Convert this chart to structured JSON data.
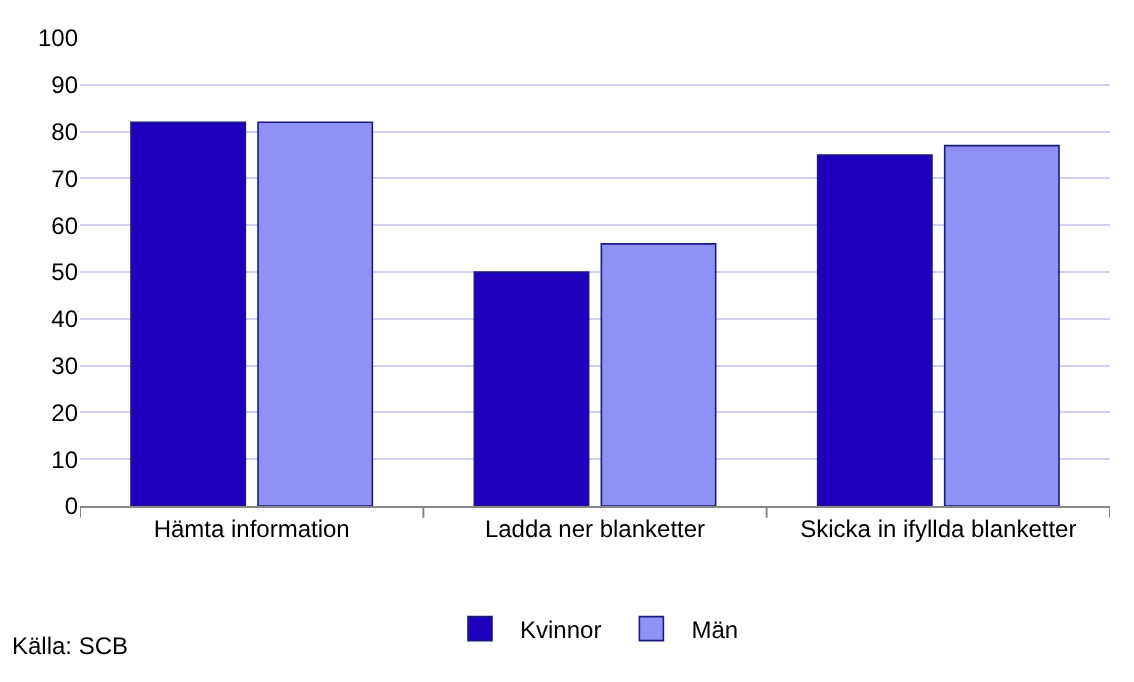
{
  "chart_data": {
    "type": "bar",
    "categories": [
      "Hämta information",
      "Ladda ner blanketter",
      "Skicka in ifyllda blanketter"
    ],
    "series": [
      {
        "name": "Kvinnor",
        "color": "#1e00be",
        "values": [
          82,
          50,
          75
        ]
      },
      {
        "name": "Män",
        "color": "#9191f5",
        "values": [
          82,
          56,
          77
        ]
      }
    ],
    "ylim": [
      0,
      100
    ],
    "yticks": [
      0,
      10,
      20,
      30,
      40,
      50,
      60,
      70,
      80,
      90,
      100
    ],
    "grid": "y",
    "legend": "bottom",
    "annotations": [
      "Källa: SCB"
    ]
  }
}
